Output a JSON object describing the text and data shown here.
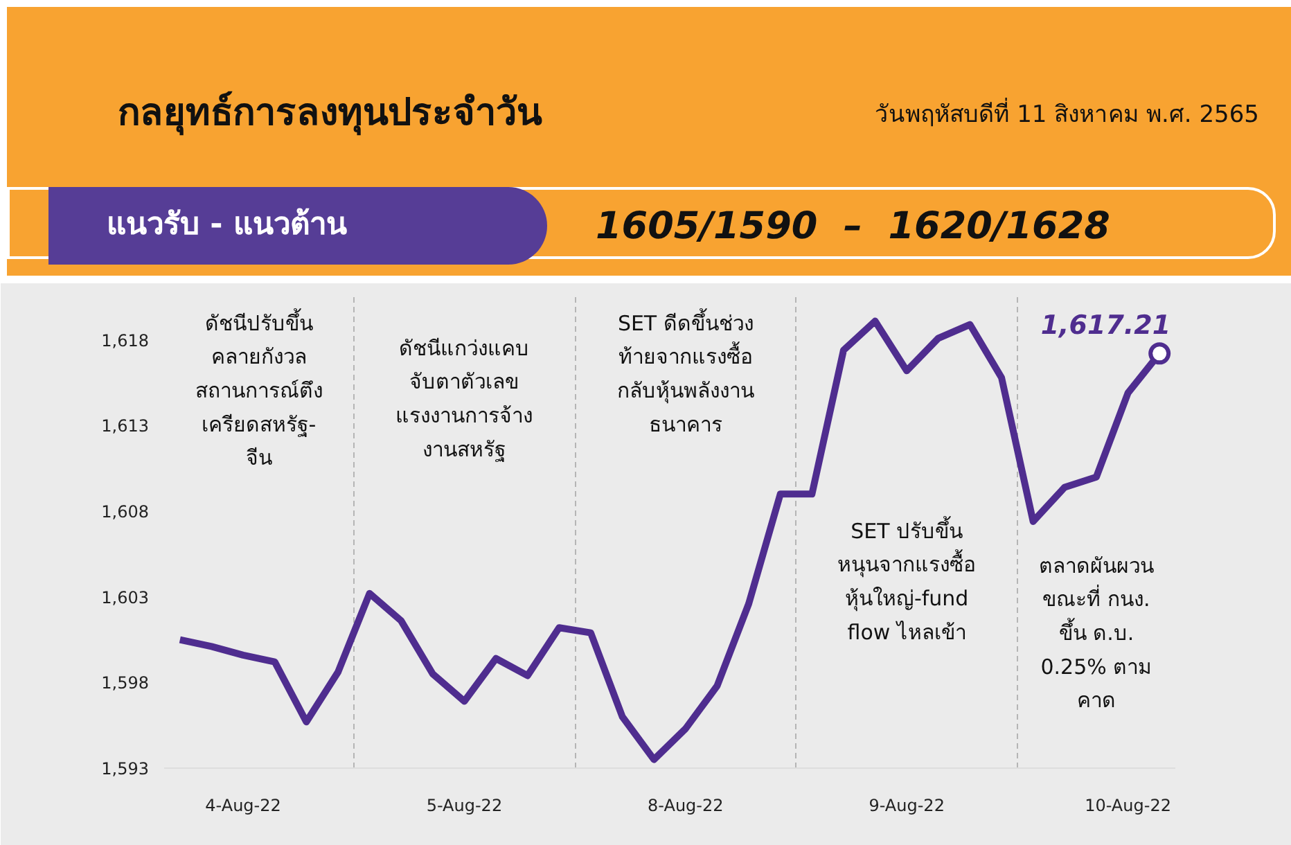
{
  "chart_data": {
    "type": "line",
    "title": "กลยุทธ์การลงทุนประจำวัน",
    "subtitle": "วันพฤหัสบดีที่ 11 สิงหาคม พ.ศ. 2565",
    "annotations": [
      "แนวรับ - แนวต้าน",
      "1605/1590  –  1620/1628",
      "ดัชนีปรับขึ้น\nคลายกังวล\nสถานการณ์ตึง\nเครียดสหรัฐ-\nจีน",
      "ดัชนีแกว่งแคบ\nจับตาตัวเลข\nแรงงานการจ้าง\nงานสหรัฐ",
      "SET ดีดขึ้นช่วง\nท้ายจากแรงซื้อ\nกลับหุ้นพลังงาน\nธนาคาร",
      "SET ปรับขึ้น\nหนุนจากแรงซื้อ\nหุ้นใหญ่-fund\nflow ไหลเข้า",
      "ตลาดผันผวน\nขณะที่ กนง.\nขึ้น ด.บ.\n0.25% ตาม\nคาด"
    ],
    "categories": [
      null,
      null,
      "4-Aug-22",
      null,
      null,
      null,
      null,
      null,
      null,
      "5-Aug-22",
      null,
      null,
      null,
      null,
      null,
      null,
      "8-Aug-22",
      null,
      null,
      null,
      null,
      null,
      null,
      "9-Aug-22",
      null,
      null,
      null,
      null,
      null,
      null,
      "10-Aug-22",
      null
    ],
    "series": [
      {
        "color": "#4f2d8f",
        "values": [
          1600.5,
          1600.1,
          1599.6,
          1599.2,
          1595.7,
          1598.6,
          1603.2,
          1601.6,
          1598.5,
          1596.9,
          1599.4,
          1598.4,
          1601.2,
          1600.9,
          1596.0,
          1593.5,
          1595.3,
          1597.8,
          1602.6,
          1609.0,
          1609.0,
          1617.4,
          1619.1,
          1616.2,
          1618.1,
          1618.9,
          1615.8,
          1607.4,
          1609.4,
          1610.0,
          1614.9,
          1617.21
        ],
        "value_labels": [
          null,
          null,
          null,
          null,
          null,
          null,
          null,
          null,
          null,
          null,
          null,
          null,
          null,
          null,
          null,
          null,
          null,
          null,
          null,
          null,
          null,
          null,
          null,
          null,
          null,
          null,
          null,
          null,
          null,
          null,
          null,
          "1,617.21"
        ]
      }
    ],
    "ylim": [
      1593,
      1620.5
    ],
    "yticks": [
      {
        "value": 1593,
        "label": "1,593"
      },
      {
        "value": 1598,
        "label": "1,598"
      },
      {
        "value": 1603,
        "label": "1,603"
      },
      {
        "value": 1608,
        "label": "1,608"
      },
      {
        "value": 1613,
        "label": "1,613"
      },
      {
        "value": 1618,
        "label": "1,618"
      }
    ],
    "grid": "x",
    "line_style": "solid"
  }
}
